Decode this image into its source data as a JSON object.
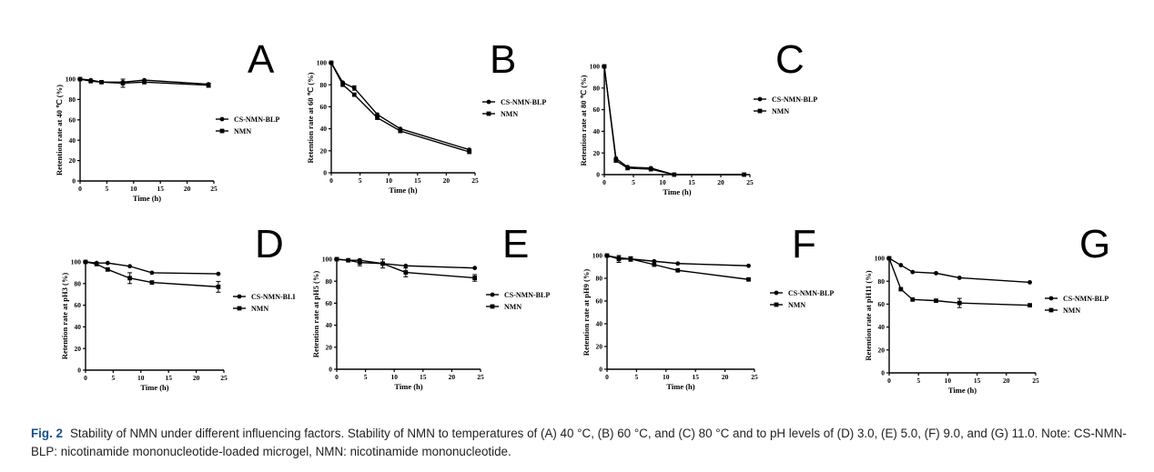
{
  "caption": {
    "label": "Fig. 2",
    "text": "Stability of NMN under different influencing factors. Stability of NMN to temperatures of (A) 40 °C, (B) 60 °C, and (C) 80 °C and to pH levels of (D) 3.0, (E) 5.0, (F) 9.0, and (G) 11.0. Note: CS-NMN-BLP: nicotinamide mononucleotide-loaded microgel, NMN: nicotinamide mononucleotide."
  },
  "chart_data": [
    {
      "panel": "A",
      "type": "line",
      "xlabel": "Time (h)",
      "ylabel": "Retention rate at 40 ℃ (%)",
      "xlim": [
        0,
        25
      ],
      "ylim": [
        0,
        100
      ],
      "xticks": [
        0,
        5,
        10,
        15,
        20,
        25
      ],
      "yticks": [
        0,
        20,
        40,
        60,
        80,
        100
      ],
      "legend_position": "right",
      "series": [
        {
          "name": "CS-NMN-BLP",
          "marker": "circle",
          "x": [
            0,
            2,
            4,
            8,
            12,
            24
          ],
          "y": [
            100,
            99,
            97,
            97,
            99,
            95
          ],
          "err": [
            0,
            0,
            0,
            0,
            0,
            0
          ]
        },
        {
          "name": "NMN",
          "marker": "square",
          "x": [
            0,
            2,
            4,
            8,
            12,
            24
          ],
          "y": [
            100,
            98,
            97,
            96,
            97,
            94
          ],
          "err": [
            0,
            0,
            0,
            4,
            0,
            2
          ]
        }
      ]
    },
    {
      "panel": "B",
      "type": "line",
      "xlabel": "Time (h)",
      "ylabel": "Retention rate at 60 ℃ (%)",
      "xlim": [
        0,
        25
      ],
      "ylim": [
        0,
        100
      ],
      "xticks": [
        0,
        5,
        10,
        15,
        20,
        25
      ],
      "yticks": [
        0,
        20,
        40,
        60,
        80,
        100
      ],
      "legend_position": "right",
      "series": [
        {
          "name": "CS-NMN-BLP",
          "marker": "circle",
          "x": [
            0,
            2,
            4,
            8,
            12,
            24
          ],
          "y": [
            100,
            82,
            77,
            53,
            40,
            21
          ],
          "err": [
            0,
            0,
            2,
            0,
            0,
            0
          ]
        },
        {
          "name": "NMN",
          "marker": "square",
          "x": [
            0,
            2,
            4,
            8,
            12,
            24
          ],
          "y": [
            100,
            80,
            71,
            50,
            38,
            19
          ],
          "err": [
            0,
            0,
            0,
            0,
            0,
            0
          ]
        }
      ]
    },
    {
      "panel": "C",
      "type": "line",
      "xlabel": "Time (h)",
      "ylabel": "Retention rate at 80 ℃ (%)",
      "xlim": [
        0,
        25
      ],
      "ylim": [
        0,
        100
      ],
      "xticks": [
        0,
        5,
        10,
        15,
        20,
        25
      ],
      "yticks": [
        0,
        20,
        40,
        60,
        80,
        100
      ],
      "legend_position": "right",
      "series": [
        {
          "name": "CS-NMN-BLP",
          "marker": "circle",
          "x": [
            0,
            2,
            4,
            8,
            12,
            24
          ],
          "y": [
            100,
            15,
            7,
            6,
            0,
            0
          ],
          "err": [
            0,
            0,
            0,
            0,
            0,
            0
          ]
        },
        {
          "name": "NMN",
          "marker": "square",
          "x": [
            0,
            2,
            4,
            8,
            12,
            24
          ],
          "y": [
            100,
            13,
            6,
            5,
            0,
            0
          ],
          "err": [
            0,
            0,
            0,
            0,
            0,
            0
          ]
        }
      ]
    },
    {
      "panel": "D",
      "type": "line",
      "xlabel": "Time (h)",
      "ylabel": "Retention rate at pH3 (%)",
      "xlim": [
        0,
        25
      ],
      "ylim": [
        0,
        100
      ],
      "xticks": [
        0,
        5,
        10,
        15,
        20,
        25
      ],
      "yticks": [
        0,
        20,
        40,
        60,
        80,
        100
      ],
      "legend_position": "right",
      "series": [
        {
          "name": "CS-NMN-BLI",
          "marker": "circle",
          "x": [
            0,
            2,
            4,
            8,
            12,
            24
          ],
          "y": [
            100,
            99,
            99,
            96,
            90,
            89
          ],
          "err": [
            0,
            0,
            0,
            0,
            0,
            0
          ]
        },
        {
          "name": "NMN",
          "marker": "square",
          "x": [
            0,
            2,
            4,
            8,
            12,
            24
          ],
          "y": [
            100,
            98,
            93,
            85,
            81,
            77
          ],
          "err": [
            0,
            0,
            0,
            5,
            0,
            5
          ]
        }
      ]
    },
    {
      "panel": "E",
      "type": "line",
      "xlabel": "Time (h)",
      "ylabel": "Retention rate at pH5 (%)",
      "xlim": [
        0,
        25
      ],
      "ylim": [
        0,
        100
      ],
      "xticks": [
        0,
        5,
        10,
        15,
        20,
        25
      ],
      "yticks": [
        0,
        20,
        40,
        60,
        80,
        100
      ],
      "legend_position": "right",
      "series": [
        {
          "name": "CS-NMN-BLP",
          "marker": "circle",
          "x": [
            0,
            2,
            4,
            8,
            12,
            24
          ],
          "y": [
            100,
            99,
            99,
            96,
            94,
            92
          ],
          "err": [
            0,
            0,
            0,
            0,
            0,
            0
          ]
        },
        {
          "name": "NMN",
          "marker": "square",
          "x": [
            0,
            2,
            4,
            8,
            12,
            24
          ],
          "y": [
            100,
            99,
            97,
            96,
            88,
            83
          ],
          "err": [
            0,
            0,
            3,
            4,
            4,
            3
          ]
        }
      ]
    },
    {
      "panel": "F",
      "type": "line",
      "xlabel": "Time (h)",
      "ylabel": "Retention rate at pH9 (%)",
      "xlim": [
        0,
        25
      ],
      "ylim": [
        0,
        100
      ],
      "xticks": [
        0,
        5,
        10,
        15,
        20,
        25
      ],
      "yticks": [
        0,
        20,
        40,
        60,
        80,
        100
      ],
      "legend_position": "right",
      "series": [
        {
          "name": "CS-NMN-BLP",
          "marker": "circle",
          "x": [
            0,
            2,
            4,
            8,
            12,
            24
          ],
          "y": [
            100,
            98,
            97,
            95,
            93,
            91
          ],
          "err": [
            0,
            0,
            0,
            0,
            0,
            0
          ]
        },
        {
          "name": "NMN",
          "marker": "square",
          "x": [
            0,
            2,
            4,
            8,
            12,
            24
          ],
          "y": [
            100,
            97,
            97,
            92,
            87,
            79
          ],
          "err": [
            0,
            3,
            2,
            0,
            0,
            0
          ]
        }
      ]
    },
    {
      "panel": "G",
      "type": "line",
      "xlabel": "Time (h)",
      "ylabel": "Retention rate at pH11 (%)",
      "xlim": [
        0,
        25
      ],
      "ylim": [
        0,
        100
      ],
      "xticks": [
        0,
        5,
        10,
        15,
        20,
        25
      ],
      "yticks": [
        0,
        20,
        40,
        60,
        80,
        100
      ],
      "legend_position": "right",
      "series": [
        {
          "name": "CS-NMN-BLP",
          "marker": "circle",
          "x": [
            0,
            2,
            4,
            8,
            12,
            24
          ],
          "y": [
            100,
            94,
            88,
            87,
            83,
            79
          ],
          "err": [
            0,
            0,
            0,
            0,
            0,
            0
          ]
        },
        {
          "name": "NMN",
          "marker": "square",
          "x": [
            0,
            2,
            4,
            8,
            12,
            24
          ],
          "y": [
            100,
            73,
            64,
            63,
            61,
            59
          ],
          "err": [
            0,
            0,
            0,
            0,
            4,
            0
          ]
        }
      ]
    }
  ]
}
